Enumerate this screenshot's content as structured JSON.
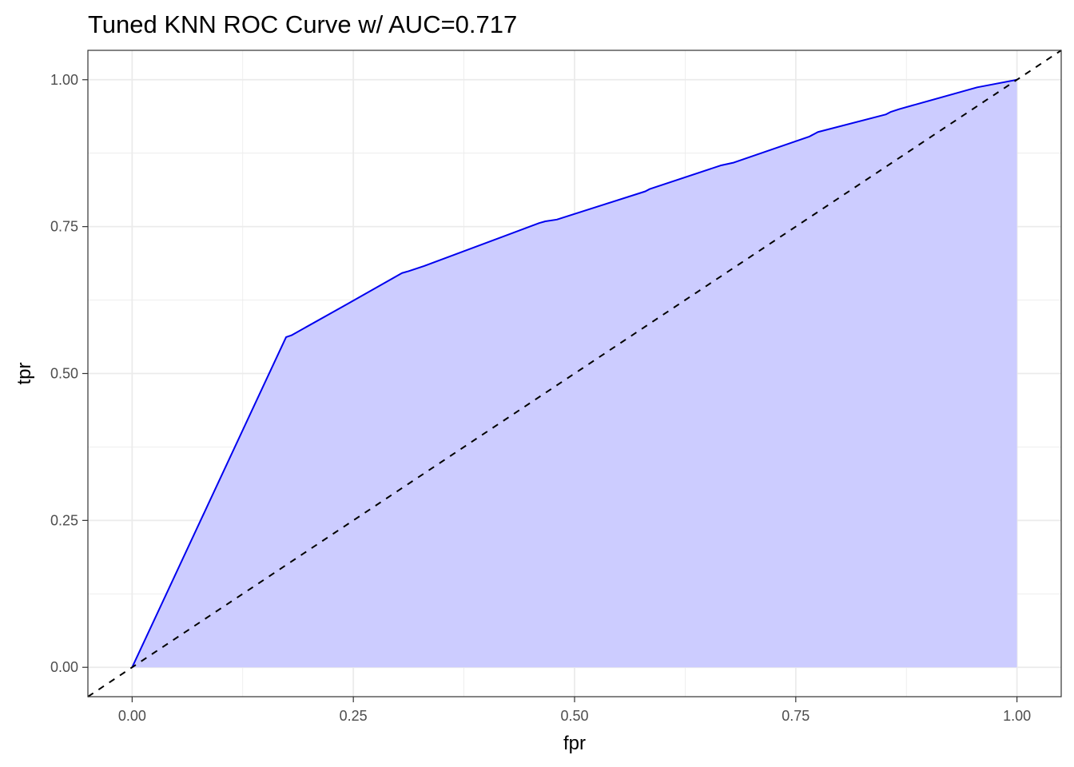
{
  "chart_data": {
    "type": "area",
    "title": "Tuned KNN ROC Curve w/ AUC=0.717",
    "xlabel": "fpr",
    "ylabel": "tpr",
    "xlim": [
      -0.05,
      1.05
    ],
    "ylim": [
      -0.05,
      1.05
    ],
    "x_ticks": [
      0.0,
      0.25,
      0.5,
      0.75,
      1.0
    ],
    "x_tick_labels": [
      "0.00",
      "0.25",
      "0.50",
      "0.75",
      "1.00"
    ],
    "y_ticks": [
      0.0,
      0.25,
      0.5,
      0.75,
      1.0
    ],
    "y_tick_labels": [
      "0.00",
      "0.25",
      "0.50",
      "0.75",
      "1.00"
    ],
    "grid": true,
    "legend": "none",
    "colors": {
      "line": "#0000ee",
      "fill": "#ccccff",
      "reference": "#000000",
      "grid": "#ebebeb",
      "panel_border": "#333333"
    },
    "series": [
      {
        "kind": "roc-curve",
        "x": [
          0.0,
          0.174,
          0.18,
          0.25,
          0.305,
          0.312,
          0.33,
          0.46,
          0.467,
          0.48,
          0.58,
          0.585,
          0.665,
          0.68,
          0.765,
          0.775,
          0.852,
          0.857,
          0.867,
          0.955,
          1.0
        ],
        "y": [
          0.0,
          0.562,
          0.565,
          0.624,
          0.671,
          0.674,
          0.683,
          0.756,
          0.759,
          0.762,
          0.81,
          0.814,
          0.854,
          0.859,
          0.903,
          0.911,
          0.941,
          0.945,
          0.95,
          0.987,
          1.0
        ]
      },
      {
        "kind": "reference-diagonal",
        "x": [
          -0.05,
          1.05
        ],
        "y": [
          -0.05,
          1.05
        ]
      }
    ]
  }
}
